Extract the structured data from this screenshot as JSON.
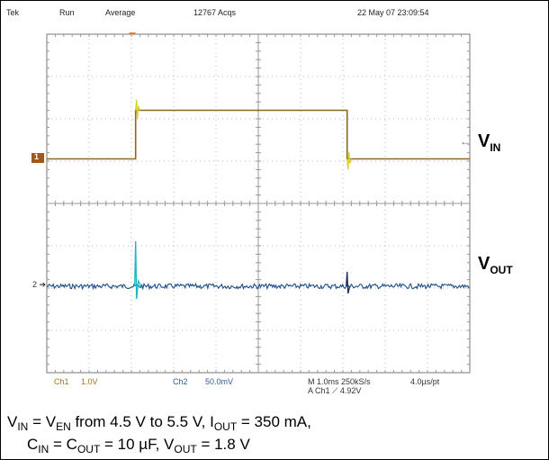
{
  "header": {
    "brand": "Tek",
    "mode": "Run",
    "acq_mode": "Average",
    "acq_count": "12767 Acqs",
    "timestamp": "22 May 07 23:09:54"
  },
  "footer": {
    "ch1_name": "Ch1",
    "ch1_scale": "1.0V",
    "ch2_name": "Ch2",
    "ch2_scale": "50.0mV",
    "timebase": "M 1.0ms 250kS/s",
    "sample_interval": "4.0µs/pt",
    "trigger": "A  Ch1  ⟋  4.92V"
  },
  "markers": {
    "ch1": "1",
    "ch2": "2"
  },
  "labels": {
    "vin_main": "V",
    "vin_sub": "IN",
    "vout_main": "V",
    "vout_sub": "OUT"
  },
  "caption": {
    "l1_a": "V",
    "l1_a_sub": "IN",
    "l1_b": " = V",
    "l1_b_sub": "EN",
    "l1_c": " from 4.5 V to 5.5 V, I",
    "l1_c_sub": "OUT",
    "l1_d": " = 350 mA,",
    "l2_a": "C",
    "l2_a_sub": "IN",
    "l2_b": " = C",
    "l2_b_sub": "OUT",
    "l2_c": " = 10 µF, V",
    "l2_c_sub": "OUT",
    "l2_d": " = 1.8 V"
  },
  "colors": {
    "background": "#ffffff",
    "grid": "#b8b8b8",
    "ch1_trace": "#8a6a1e",
    "ch1_spike": "#d8d020",
    "ch2_trace": "#1c4f8c",
    "ch2_spike": "#18b4c8",
    "ch1_text": "#a8741c",
    "ch2_text": "#2a5aa0"
  },
  "chart_data": {
    "type": "line",
    "x_divisions": 10,
    "y_divisions": 8,
    "x_units": "ms",
    "x_per_div": 1.0,
    "series": [
      {
        "name": "V_IN",
        "points": [
          [
            0,
            4.5
          ],
          [
            2.1,
            4.5
          ],
          [
            2.1,
            5.5
          ],
          [
            7.1,
            5.5
          ],
          [
            7.1,
            4.5
          ],
          [
            10,
            4.5
          ]
        ]
      },
      {
        "name": "V_OUT",
        "points": [
          [
            0,
            1.8
          ],
          [
            10,
            1.8
          ]
        ]
      }
    ]
  }
}
